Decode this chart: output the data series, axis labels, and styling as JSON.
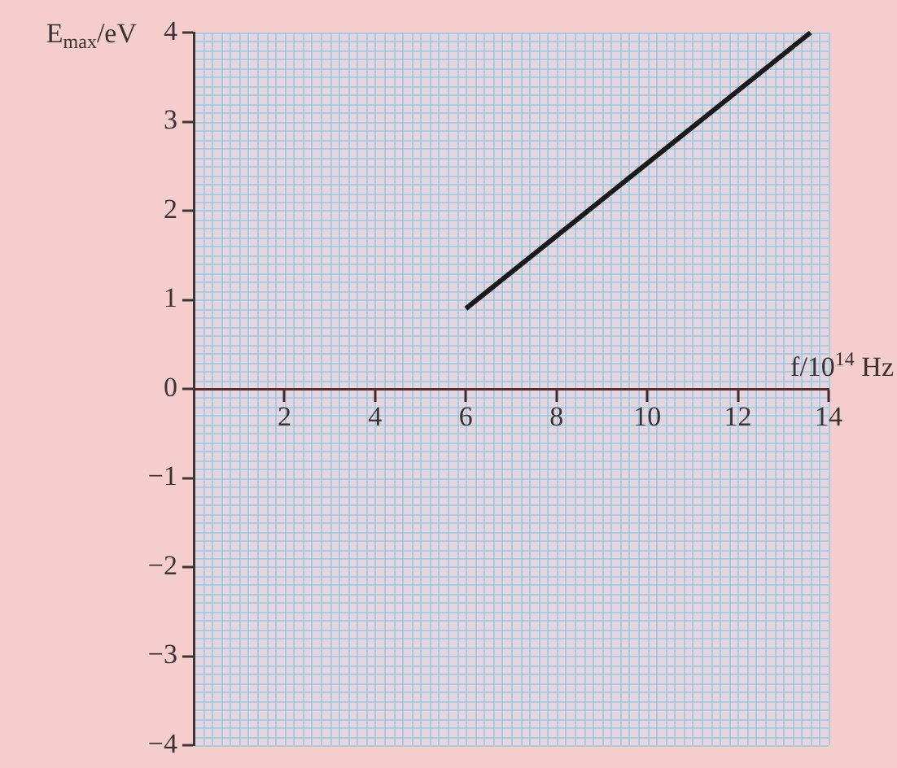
{
  "chart_data": {
    "type": "line",
    "xlabel": "f/10$^{14}$ Hz",
    "ylabel": "E$_{max}$/eV",
    "x": [
      6,
      13.6
    ],
    "series": [
      {
        "color": "#1a1a1a",
        "values": [
          0.9,
          4.0
        ]
      }
    ],
    "xlim": [
      0,
      14
    ],
    "ylim": [
      -4,
      4
    ],
    "xticks": [
      2,
      4,
      6,
      8,
      10,
      12,
      14
    ],
    "yticks": [
      {
        "value": -4,
        "label": "−4"
      },
      {
        "value": -3,
        "label": "−3"
      },
      {
        "value": -2,
        "label": "−2"
      },
      {
        "value": -1,
        "label": "−1"
      },
      0,
      1,
      2,
      3,
      4
    ],
    "grid": true,
    "marker": "none",
    "line_style": "solid"
  }
}
